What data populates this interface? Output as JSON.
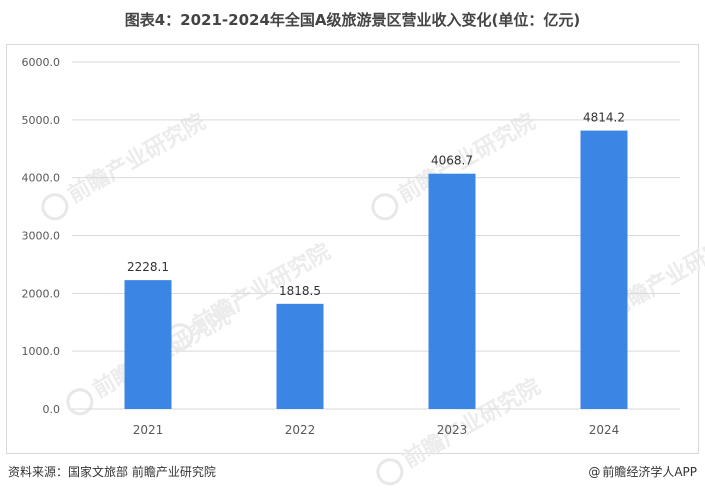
{
  "title": "图表4：2021-2024年全国A级旅游景区营业收入变化(单位：亿元)",
  "footer": {
    "source": "资料来源：国家文旅部 前瞻产业研究院",
    "credit": "前瞻经济学人APP",
    "credit_icon": "at-icon"
  },
  "watermark": {
    "text": "前瞻产业研究院"
  },
  "colors": {
    "bar": "#3b86e5",
    "grid": "#d9d9d9",
    "axis_text": "#595959",
    "label_text": "#333333"
  },
  "chart_data": {
    "type": "bar",
    "title": "图表4：2021-2024年全国A级旅游景区营业收入变化(单位：亿元)",
    "xlabel": "",
    "ylabel": "",
    "categories": [
      "2021",
      "2022",
      "2023",
      "2024"
    ],
    "series": [
      {
        "values": [
          2228.1,
          1818.5,
          4068.7,
          4814.2
        ]
      }
    ],
    "data_labels": [
      "2228.1",
      "1818.5",
      "4068.7",
      "4814.2"
    ],
    "ylim": [
      0,
      6000
    ],
    "yticks": [
      0,
      1000,
      2000,
      3000,
      4000,
      5000,
      6000
    ],
    "ytick_labels": [
      "0.0",
      "1000.0",
      "2000.0",
      "3000.0",
      "4000.0",
      "5000.0",
      "6000.0"
    ],
    "grid": true,
    "legend": "none"
  }
}
